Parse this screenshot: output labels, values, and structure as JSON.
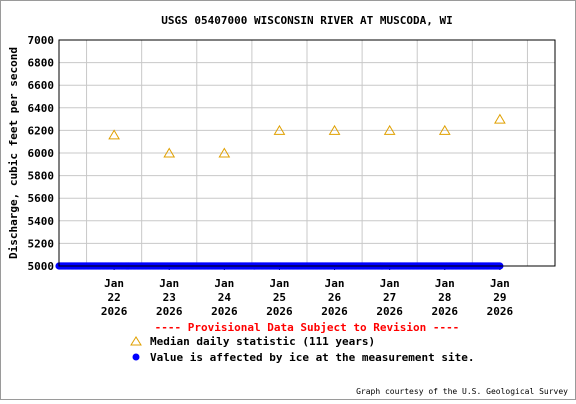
{
  "chart_data": {
    "type": "scatter",
    "title": "USGS 05407000 WISCONSIN RIVER AT MUSCODA, WI",
    "ylabel": "Discharge, cubic feet per second",
    "ylim": [
      5000,
      7000
    ],
    "yticks": [
      "5000",
      "5200",
      "5400",
      "5600",
      "5800",
      "6000",
      "6200",
      "6400",
      "6600",
      "6800",
      "7000"
    ],
    "x_ticks": [
      {
        "month": "Jan",
        "day": "22",
        "year": "2026"
      },
      {
        "month": "Jan",
        "day": "23",
        "year": "2026"
      },
      {
        "month": "Jan",
        "day": "24",
        "year": "2026"
      },
      {
        "month": "Jan",
        "day": "25",
        "year": "2026"
      },
      {
        "month": "Jan",
        "day": "26",
        "year": "2026"
      },
      {
        "month": "Jan",
        "day": "27",
        "year": "2026"
      },
      {
        "month": "Jan",
        "day": "28",
        "year": "2026"
      },
      {
        "month": "Jan",
        "day": "29",
        "year": "2026"
      }
    ],
    "xlim": [
      "2026-01-21 12:00",
      "2026-01-30 12:00"
    ],
    "grid": true,
    "series": [
      {
        "name": "Median daily statistic (111 years)",
        "marker": "triangle",
        "color": "#e0a000",
        "x": [
          "2026-01-22 12:00",
          "2026-01-23 12:00",
          "2026-01-24 12:00",
          "2026-01-25 12:00",
          "2026-01-26 12:00",
          "2026-01-27 12:00",
          "2026-01-28 12:00",
          "2026-01-29 12:00"
        ],
        "values": [
          6160,
          6000,
          6000,
          6200,
          6200,
          6200,
          6200,
          6300
        ]
      },
      {
        "name": "Value is affected by ice at the measurement site.",
        "marker": "dot",
        "color": "#0000ff",
        "x_start": "2026-01-21 12:00",
        "x_end": "2026-01-29 12:00",
        "value": 5000
      }
    ],
    "provisional_note": "---- Provisional Data Subject to Revision ----",
    "provisional_color": "#ff0000",
    "credit": "Graph courtesy of the U.S. Geological Survey"
  }
}
